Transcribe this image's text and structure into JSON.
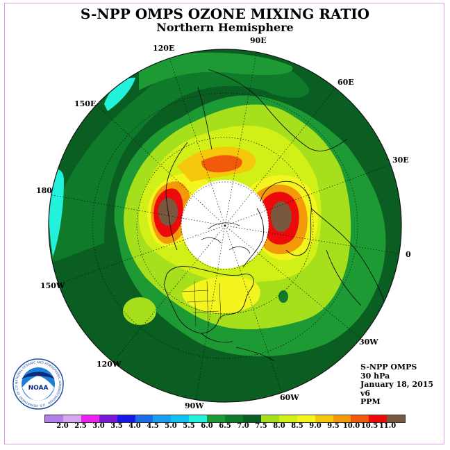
{
  "title": "S-NPP OMPS OZONE MIXING RATIO",
  "subtitle": "Northern Hemisphere",
  "longitude_labels": {
    "lon_120e": "120E",
    "lon_90e": "90E",
    "lon_60e": "60E",
    "lon_30e": "30E",
    "lon_0": "0",
    "lon_30w": "30W",
    "lon_60w": "60W",
    "lon_90w": "90W",
    "lon_120w": "120W",
    "lon_150w": "150W",
    "lon_180": "180",
    "lon_150e": "150E"
  },
  "info": {
    "instrument": "S-NPP OMPS",
    "level": "30 hPa",
    "date": "January 18, 2015",
    "version": "v6",
    "units": "PPM"
  },
  "logo": {
    "text": "NOAA",
    "ring_text": "NATIONAL OCEANIC AND ATMOSPHERIC ADMINISTRATION · U.S. DEPARTMENT OF COMMERCE"
  },
  "colorbar": {
    "ticks": [
      "2.0",
      "2.5",
      "3.0",
      "3.5",
      "4.0",
      "4.5",
      "5.0",
      "5.5",
      "6.0",
      "6.5",
      "7.0",
      "7.5",
      "8.0",
      "8.5",
      "9.0",
      "9.5",
      "10.0",
      "10.5",
      "11.0"
    ],
    "colors": [
      "#b07ee8",
      "#d9a6f2",
      "#ee22ee",
      "#7a18d8",
      "#1818e8",
      "#1c6ee8",
      "#1a9ef0",
      "#12c2f2",
      "#22f2dc",
      "#1e9a34",
      "#0f7a2a",
      "#0a5e22",
      "#a6e01c",
      "#d0f018",
      "#f4f41e",
      "#f6c80c",
      "#f49a0a",
      "#f05a0a",
      "#ec0a0a",
      "#7a5840"
    ]
  },
  "map_colors": {
    "outer_dark_green": "#0a5e22",
    "mid_green": "#0f7a2a",
    "bright_green": "#1e9a34",
    "cyan": "#22f2dc",
    "lime": "#a6e01c",
    "yellow_green": "#d0f018",
    "yellow": "#f4f41e",
    "gold": "#f6c80c",
    "orange": "#f49a0a",
    "red_orange": "#f05a0a",
    "red": "#ec0a0a",
    "brown": "#7a5840",
    "polar_night": "#ffffff"
  }
}
